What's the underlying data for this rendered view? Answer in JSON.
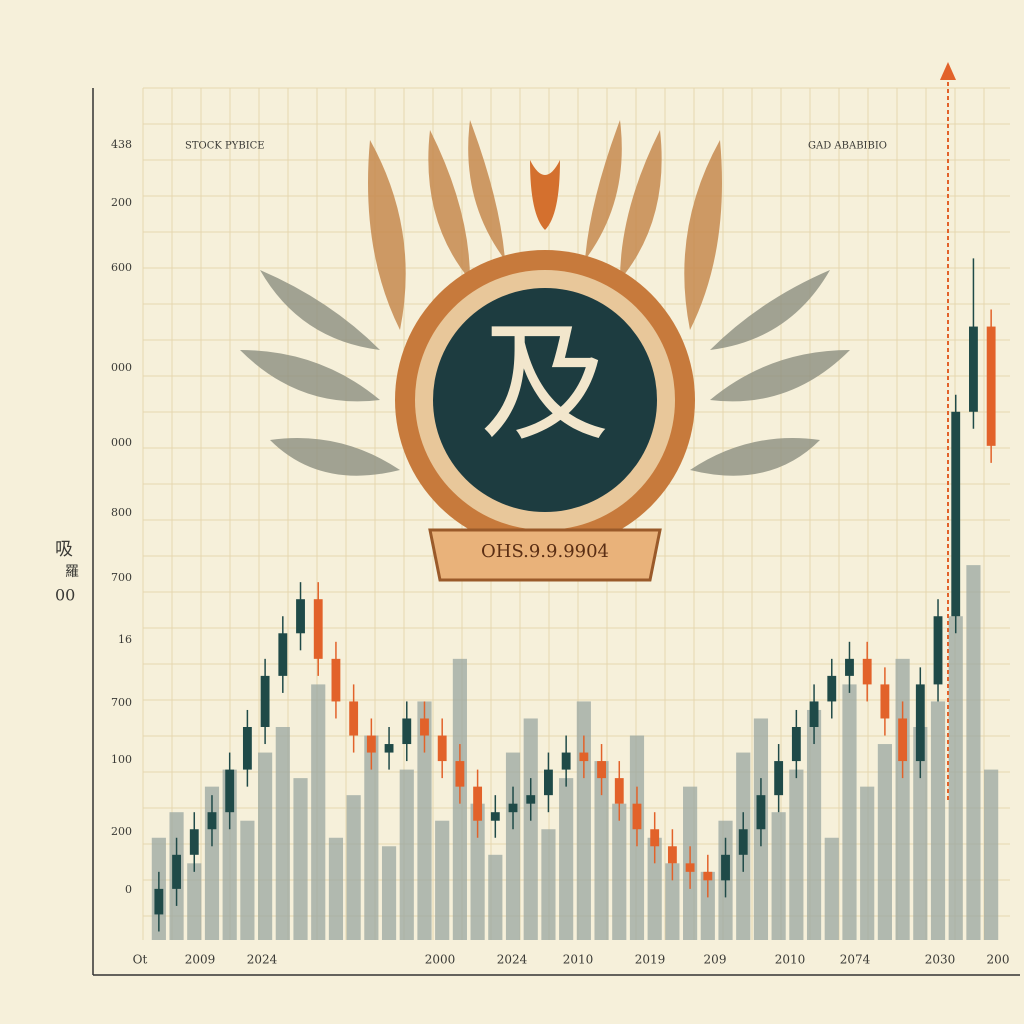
{
  "chart_data": {
    "type": "candlestick",
    "title": "STOCK PYBICE",
    "subtitle": "GAD ABABIBIO",
    "emblem_glyph": "及",
    "emblem_banner": "OHS.9.9.9904",
    "side_labels": [
      "吸",
      "羅",
      "00"
    ],
    "y_axis_labels": [
      "438",
      "200",
      "600",
      "000",
      "000",
      "800",
      "700",
      "16",
      "700",
      "100",
      "200",
      "0"
    ],
    "x_axis_labels": [
      "Ot",
      "2009",
      "2024",
      "2000",
      "2024",
      "2010",
      "2019",
      "209",
      "2010",
      "2074",
      "2030",
      "200"
    ],
    "ylim": [
      0,
      100
    ],
    "open": [
      3,
      6,
      10,
      13,
      15,
      20,
      25,
      31,
      36,
      40,
      33,
      28,
      24,
      22,
      23,
      26,
      24,
      21,
      18,
      14,
      15,
      16,
      17,
      20,
      22,
      21,
      19,
      16,
      13,
      11,
      9,
      8,
      7,
      10,
      13,
      17,
      21,
      25,
      28,
      31,
      33,
      30,
      26,
      21,
      30,
      38,
      62,
      72
    ],
    "high": [
      8,
      12,
      15,
      17,
      22,
      27,
      33,
      38,
      42,
      42,
      35,
      30,
      26,
      25,
      28,
      28,
      26,
      23,
      20,
      17,
      18,
      19,
      22,
      24,
      24,
      23,
      21,
      18,
      15,
      13,
      11,
      10,
      12,
      15,
      19,
      23,
      27,
      30,
      33,
      35,
      35,
      32,
      28,
      32,
      40,
      64,
      80,
      74
    ],
    "low": [
      1,
      4,
      8,
      11,
      13,
      18,
      23,
      29,
      34,
      31,
      26,
      22,
      20,
      20,
      21,
      22,
      19,
      16,
      12,
      12,
      13,
      14,
      15,
      18,
      19,
      17,
      14,
      11,
      9,
      7,
      6,
      5,
      5,
      8,
      11,
      15,
      19,
      23,
      26,
      29,
      28,
      24,
      19,
      19,
      28,
      36,
      60,
      56
    ],
    "close": [
      6,
      10,
      13,
      15,
      20,
      25,
      31,
      36,
      40,
      33,
      28,
      24,
      22,
      23,
      26,
      24,
      21,
      18,
      14,
      15,
      16,
      17,
      20,
      22,
      21,
      19,
      16,
      13,
      11,
      9,
      8,
      7,
      10,
      13,
      17,
      21,
      25,
      28,
      31,
      33,
      30,
      26,
      21,
      30,
      38,
      62,
      72,
      58
    ],
    "volume": [
      12,
      15,
      9,
      18,
      20,
      14,
      22,
      25,
      19,
      30,
      12,
      17,
      24,
      11,
      20,
      28,
      14,
      33,
      16,
      10,
      22,
      26,
      13,
      19,
      28,
      21,
      16,
      24,
      12,
      9,
      18,
      8,
      14,
      22,
      26,
      15,
      20,
      27,
      12,
      30,
      18,
      23,
      33,
      25,
      28,
      38,
      44,
      20
    ],
    "up_color": "#1f4a48",
    "down_color": "#e2622a",
    "volume_color": "#9aa7a0"
  }
}
